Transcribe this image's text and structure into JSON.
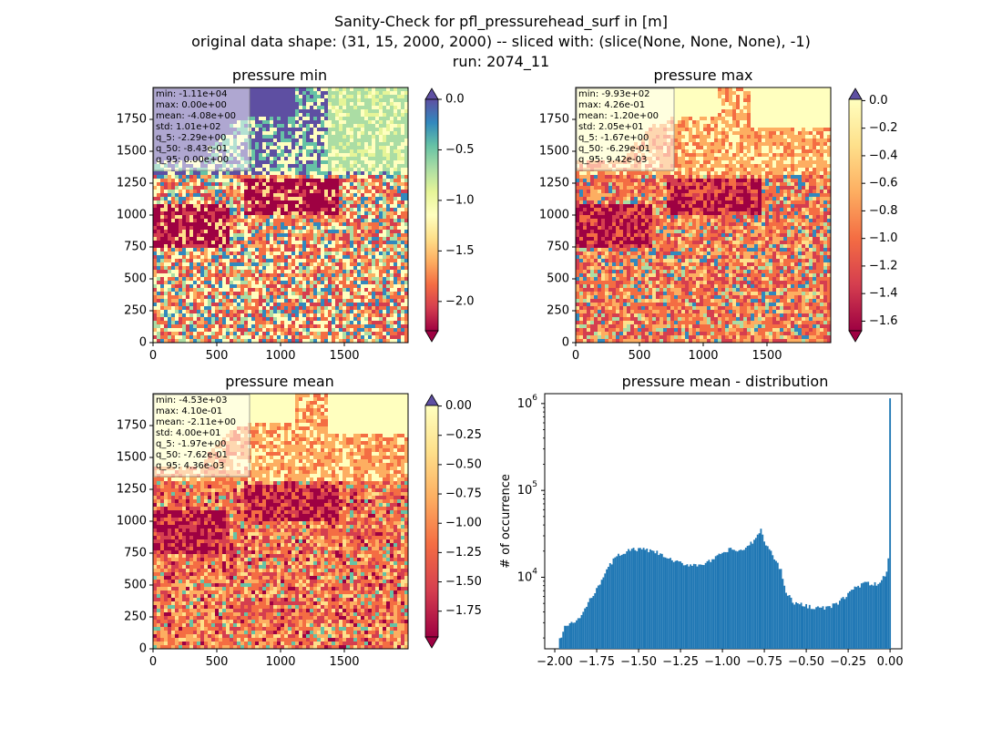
{
  "figure": {
    "suptitle_lines": [
      "Sanity-Check for pfl_pressurehead_surf in [m]",
      "original data shape: (31, 15, 2000, 2000) -- sliced with: (slice(None, None, None), -1)",
      "run: 2074_11"
    ]
  },
  "panels": [
    {
      "title": "pressure min",
      "stats": [
        "min: -1.11e+04",
        "max: 0.00e+00",
        "mean: -4.08e+00",
        "std: 1.01e+02",
        "q_5: -2.29e+00",
        "q_50: -8.43e-01",
        "q_95: 0.00e+00"
      ],
      "x_ticks": [
        "0",
        "500",
        "1000",
        "1500"
      ],
      "y_ticks": [
        "0",
        "250",
        "500",
        "750",
        "1000",
        "1250",
        "1500",
        "1750"
      ],
      "colorbar_ticks": [
        "0.0",
        "-0.5",
        "-1.0",
        "-1.5",
        "-2.0"
      ],
      "colorbar_range": [
        -2.29,
        0.0
      ],
      "colorbar_extend": "both"
    },
    {
      "title": "pressure max",
      "stats": [
        "min: -9.93e+02",
        "max: 4.26e-01",
        "mean: -1.20e+00",
        "std: 2.05e+01",
        "q_5: -1.67e+00",
        "q_50: -6.29e-01",
        "q_95: 9.42e-03"
      ],
      "x_ticks": [
        "0",
        "500",
        "1000",
        "1500"
      ],
      "y_ticks": [
        "0",
        "250",
        "500",
        "750",
        "1000",
        "1250",
        "1500",
        "1750"
      ],
      "colorbar_ticks": [
        "0.0",
        "-0.2",
        "-0.4",
        "-0.6",
        "-0.8",
        "-1.0",
        "-1.2",
        "-1.4",
        "-1.6"
      ],
      "colorbar_range": [
        -1.67,
        0.0094
      ],
      "colorbar_extend": "both"
    },
    {
      "title": "pressure mean",
      "stats": [
        "min: -4.53e+03",
        "max: 4.10e-01",
        "mean: -2.11e+00",
        "std: 4.00e+01",
        "q_5: -1.97e+00",
        "q_50: -7.62e-01",
        "q_95: 4.36e-03"
      ],
      "x_ticks": [
        "0",
        "500",
        "1000",
        "1500"
      ],
      "y_ticks": [
        "0",
        "250",
        "500",
        "750",
        "1000",
        "1250",
        "1500",
        "1750"
      ],
      "colorbar_ticks": [
        "0.00",
        "-0.25",
        "-0.50",
        "-0.75",
        "-1.00",
        "-1.25",
        "-1.50",
        "-1.75"
      ],
      "colorbar_range": [
        -1.97,
        0.0044
      ],
      "colorbar_extend": "both"
    }
  ],
  "chart_data": [
    {
      "type": "heatmap",
      "title": "pressure min",
      "x_range": [
        0,
        2000
      ],
      "y_range": [
        0,
        2000
      ],
      "colormap": "Spectral",
      "value_range": [
        -2.29,
        0.0
      ]
    },
    {
      "type": "heatmap",
      "title": "pressure max",
      "x_range": [
        0,
        2000
      ],
      "y_range": [
        0,
        2000
      ],
      "colormap": "Spectral",
      "value_range": [
        -1.67,
        0.0094
      ]
    },
    {
      "type": "heatmap",
      "title": "pressure mean",
      "x_range": [
        0,
        2000
      ],
      "y_range": [
        0,
        2000
      ],
      "colormap": "Spectral",
      "value_range": [
        -1.97,
        0.0044
      ]
    },
    {
      "type": "bar",
      "title": "pressure mean - distribution",
      "ylabel": "# of occurrence",
      "xlabel": "",
      "y_scale": "log",
      "xlim": [
        -2.06,
        0.07
      ],
      "ylim": [
        1500,
        1300000
      ],
      "x_ticks": [
        "−2.00",
        "−1.75",
        "−1.50",
        "−1.25",
        "−1.00",
        "−0.75",
        "−0.50",
        "−0.25",
        "0.00"
      ],
      "y_ticks": [
        "10^4",
        "10^5",
        "10^6"
      ],
      "bar_color": "#1f77b4",
      "anchors": [
        [
          -1.97,
          1900
        ],
        [
          -1.94,
          2700
        ],
        [
          -1.9,
          2900
        ],
        [
          -1.85,
          3400
        ],
        [
          -1.8,
          5000
        ],
        [
          -1.75,
          7500
        ],
        [
          -1.7,
          11000
        ],
        [
          -1.65,
          16000
        ],
        [
          -1.6,
          19000
        ],
        [
          -1.55,
          20500
        ],
        [
          -1.5,
          21000
        ],
        [
          -1.45,
          20500
        ],
        [
          -1.4,
          19500
        ],
        [
          -1.35,
          17500
        ],
        [
          -1.3,
          15500
        ],
        [
          -1.25,
          14500
        ],
        [
          -1.2,
          14000
        ],
        [
          -1.15,
          14000
        ],
        [
          -1.1,
          14500
        ],
        [
          -1.05,
          16000
        ],
        [
          -1.0,
          19000
        ],
        [
          -0.95,
          21000
        ],
        [
          -0.9,
          20000
        ],
        [
          -0.85,
          22000
        ],
        [
          -0.8,
          28000
        ],
        [
          -0.77,
          35000
        ],
        [
          -0.74,
          24000
        ],
        [
          -0.7,
          18000
        ],
        [
          -0.65,
          12000
        ],
        [
          -0.62,
          7000
        ],
        [
          -0.58,
          5200
        ],
        [
          -0.55,
          4900
        ],
        [
          -0.5,
          4700
        ],
        [
          -0.45,
          4500
        ],
        [
          -0.4,
          4400
        ],
        [
          -0.35,
          4600
        ],
        [
          -0.3,
          5200
        ],
        [
          -0.25,
          6500
        ],
        [
          -0.2,
          7800
        ],
        [
          -0.15,
          8500
        ],
        [
          -0.1,
          8200
        ],
        [
          -0.05,
          8800
        ],
        [
          -0.02,
          12000
        ],
        [
          -0.005,
          20000
        ],
        [
          0.0,
          1150000
        ]
      ]
    }
  ]
}
